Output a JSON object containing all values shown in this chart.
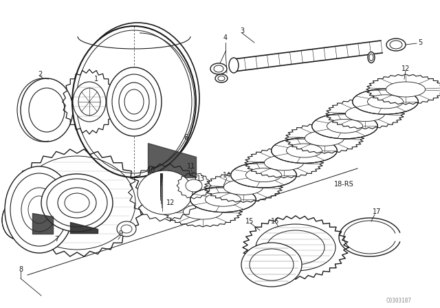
{
  "bg_color": "#ffffff",
  "line_color": "#1a1a1a",
  "watermark": "C0303187",
  "fig_w": 6.4,
  "fig_h": 4.48,
  "dpi": 100
}
